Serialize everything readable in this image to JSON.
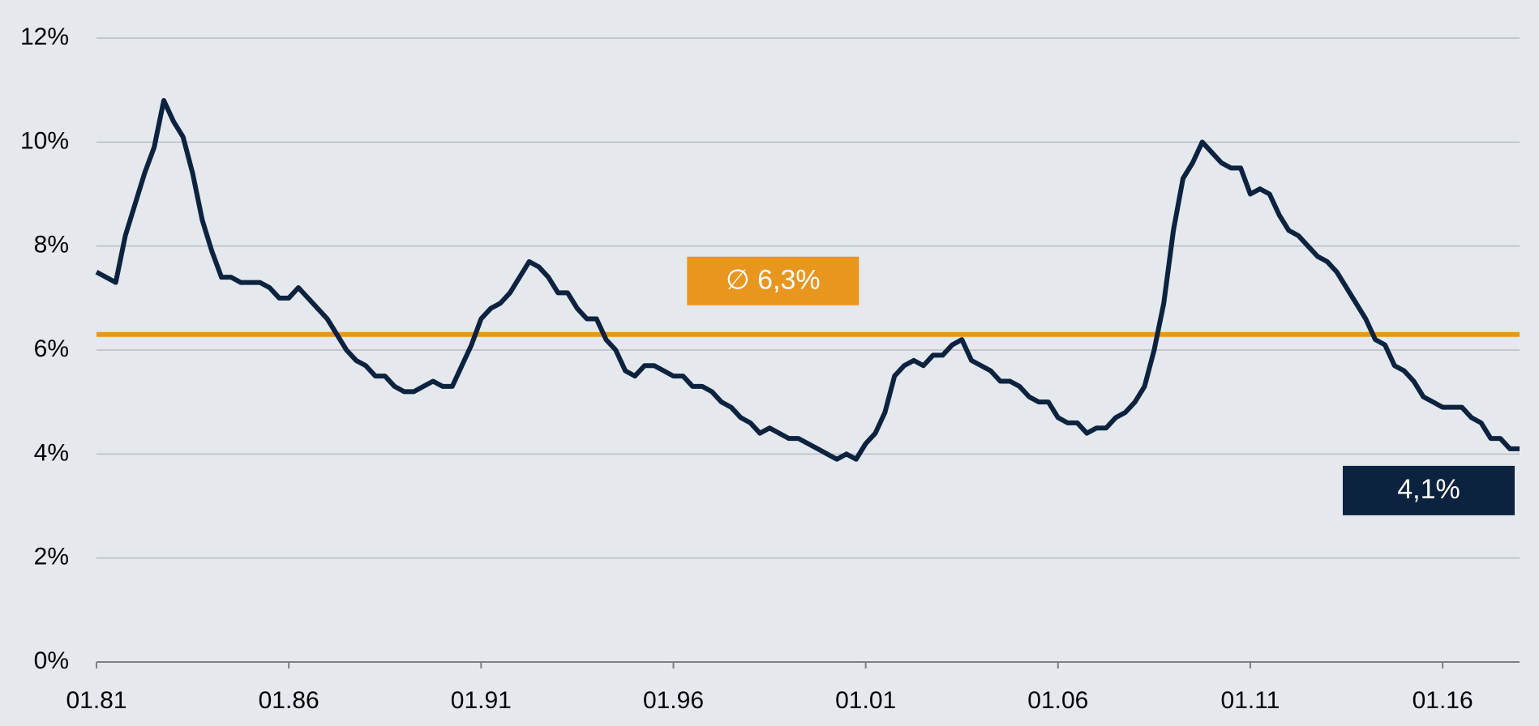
{
  "chart_data": {
    "type": "line",
    "x": [
      1981,
      1981.25,
      1981.5,
      1981.75,
      1982,
      1982.25,
      1982.5,
      1982.75,
      1983,
      1983.25,
      1983.5,
      1983.75,
      1984,
      1984.25,
      1984.5,
      1984.75,
      1985,
      1985.25,
      1985.5,
      1985.75,
      1986,
      1986.25,
      1986.5,
      1986.75,
      1987,
      1987.25,
      1987.5,
      1987.75,
      1988,
      1988.25,
      1988.5,
      1988.75,
      1989,
      1989.25,
      1989.5,
      1989.75,
      1990,
      1990.25,
      1990.5,
      1990.75,
      1991,
      1991.25,
      1991.5,
      1991.75,
      1992,
      1992.25,
      1992.5,
      1992.75,
      1993,
      1993.25,
      1993.5,
      1993.75,
      1994,
      1994.25,
      1994.5,
      1994.75,
      1995,
      1995.25,
      1995.5,
      1995.75,
      1996,
      1996.25,
      1996.5,
      1996.75,
      1997,
      1997.25,
      1997.5,
      1997.75,
      1998,
      1998.25,
      1998.5,
      1998.75,
      1999,
      1999.25,
      1999.5,
      1999.75,
      2000,
      2000.25,
      2000.5,
      2000.75,
      2001,
      2001.25,
      2001.5,
      2001.75,
      2002,
      2002.25,
      2002.5,
      2002.75,
      2003,
      2003.25,
      2003.5,
      2003.75,
      2004,
      2004.25,
      2004.5,
      2004.75,
      2005,
      2005.25,
      2005.5,
      2005.75,
      2006,
      2006.25,
      2006.5,
      2006.75,
      2007,
      2007.25,
      2007.5,
      2007.75,
      2008,
      2008.25,
      2008.5,
      2008.75,
      2009,
      2009.25,
      2009.5,
      2009.75,
      2010,
      2010.25,
      2010.5,
      2010.75,
      2011,
      2011.25,
      2011.5,
      2011.75,
      2012,
      2012.25,
      2012.5,
      2012.75,
      2013,
      2013.25,
      2013.5,
      2013.75,
      2014,
      2014.25,
      2014.5,
      2014.75,
      2015,
      2015.25,
      2015.5,
      2015.75,
      2016,
      2016.25,
      2016.5,
      2016.75,
      2017,
      2017.25,
      2017.5,
      2017.75,
      2018
    ],
    "series": [
      {
        "color": "#0c2340",
        "values": [
          7.5,
          7.4,
          7.3,
          8.2,
          8.8,
          9.4,
          9.9,
          10.8,
          10.4,
          10.1,
          9.4,
          8.5,
          7.9,
          7.4,
          7.4,
          7.3,
          7.3,
          7.3,
          7.2,
          7.0,
          7.0,
          7.2,
          7.0,
          6.8,
          6.6,
          6.3,
          6.0,
          5.8,
          5.7,
          5.5,
          5.5,
          5.3,
          5.2,
          5.2,
          5.3,
          5.4,
          5.3,
          5.3,
          5.7,
          6.1,
          6.6,
          6.8,
          6.9,
          7.1,
          7.4,
          7.7,
          7.6,
          7.4,
          7.1,
          7.1,
          6.8,
          6.6,
          6.6,
          6.2,
          6.0,
          5.6,
          5.5,
          5.7,
          5.7,
          5.6,
          5.5,
          5.5,
          5.3,
          5.3,
          5.2,
          5.0,
          4.9,
          4.7,
          4.6,
          4.4,
          4.5,
          4.4,
          4.3,
          4.3,
          4.2,
          4.1,
          4.0,
          3.9,
          4.0,
          3.9,
          4.2,
          4.4,
          4.8,
          5.5,
          5.7,
          5.8,
          5.7,
          5.9,
          5.9,
          6.1,
          6.2,
          5.8,
          5.7,
          5.6,
          5.4,
          5.4,
          5.3,
          5.1,
          5.0,
          5.0,
          4.7,
          4.6,
          4.6,
          4.4,
          4.5,
          4.5,
          4.7,
          4.8,
          5.0,
          5.3,
          6.0,
          6.9,
          8.3,
          9.3,
          9.6,
          10.0,
          9.8,
          9.6,
          9.5,
          9.5,
          9.0,
          9.1,
          9.0,
          8.6,
          8.3,
          8.2,
          8.0,
          7.8,
          7.7,
          7.5,
          7.2,
          6.9,
          6.6,
          6.2,
          6.1,
          5.7,
          5.6,
          5.4,
          5.1,
          5.0,
          4.9,
          4.9,
          4.9,
          4.7,
          4.6,
          4.3,
          4.3,
          4.1,
          4.1
        ]
      }
    ],
    "xlim": [
      1981,
      2018
    ],
    "xticks": [
      {
        "value": 1981,
        "label": "01.81"
      },
      {
        "value": 1986,
        "label": "01.86"
      },
      {
        "value": 1991,
        "label": "01.91"
      },
      {
        "value": 1996,
        "label": "01.96"
      },
      {
        "value": 2001,
        "label": "01.01"
      },
      {
        "value": 2006,
        "label": "01.06"
      },
      {
        "value": 2011,
        "label": "01.11"
      },
      {
        "value": 2016,
        "label": "01.16"
      }
    ],
    "ylim": [
      0,
      12
    ],
    "yticks": [
      {
        "value": 0,
        "label": "0%"
      },
      {
        "value": 2,
        "label": "2%"
      },
      {
        "value": 4,
        "label": "4%"
      },
      {
        "value": 6,
        "label": "6%"
      },
      {
        "value": 8,
        "label": "8%"
      },
      {
        "value": 10,
        "label": "10%"
      },
      {
        "value": 12,
        "label": "12%"
      }
    ],
    "grid": true,
    "mean_line": {
      "value": 6.3,
      "label": "∅ 6,3%",
      "color": "#e8961e"
    },
    "end_label": {
      "value": 4.1,
      "label": "4,1%",
      "color": "#0c2340"
    }
  }
}
